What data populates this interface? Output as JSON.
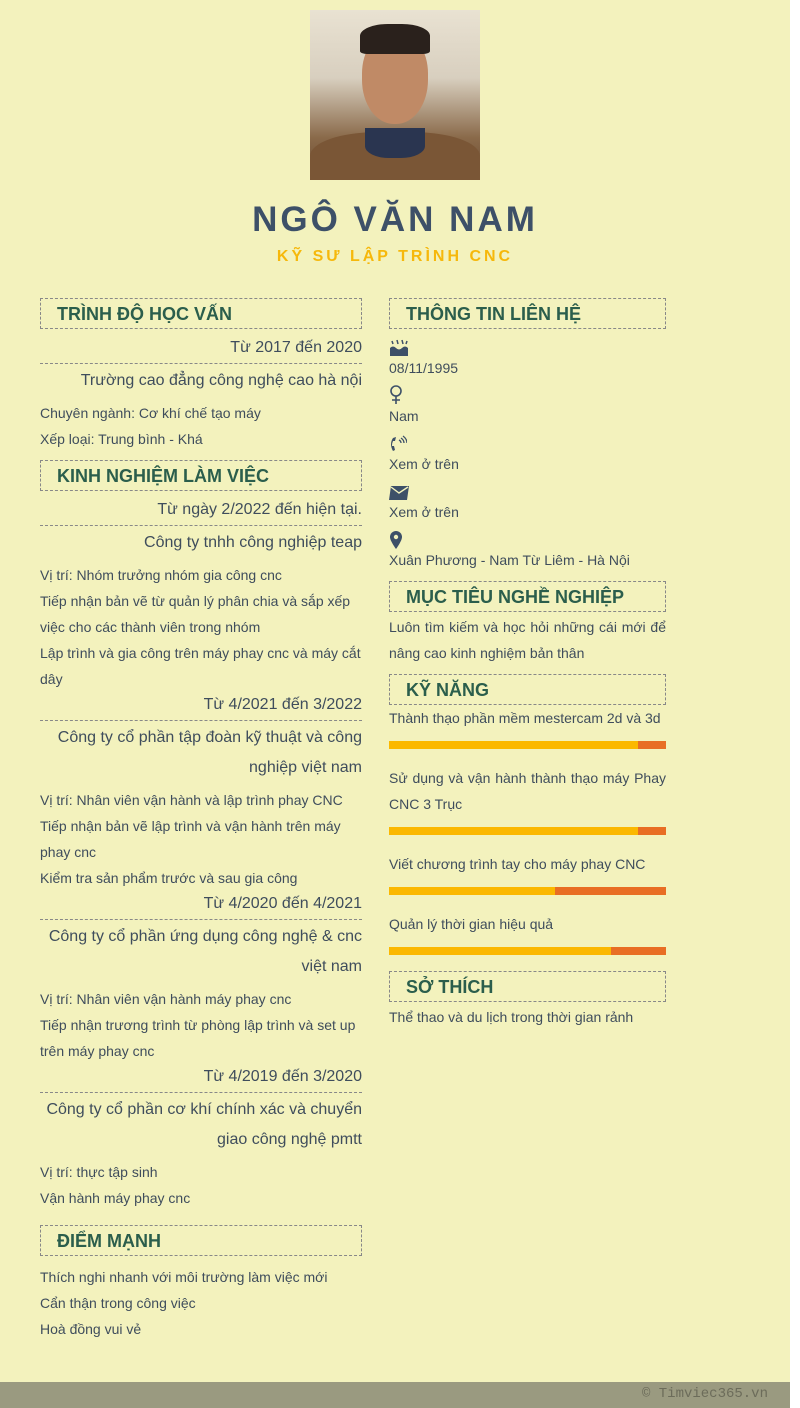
{
  "header": {
    "name": "NGÔ VĂN NAM",
    "title": "KỸ SƯ LẬP TRÌNH CNC"
  },
  "education": {
    "heading": "TRÌNH ĐỘ HỌC VẤN",
    "items": [
      {
        "date": "Từ 2017 đến 2020",
        "org": "Trường cao đẳng công nghệ cao hà nội",
        "lines": [
          "Chuyên ngành: Cơ khí chế tạo máy",
          "Xếp loại: Trung bình - Khá"
        ]
      }
    ]
  },
  "experience": {
    "heading": "KINH NGHIỆM LÀM VIỆC",
    "items": [
      {
        "date": "Từ ngày 2/2022 đến hiện tại.",
        "org": "Công ty tnhh công nghiệp teap",
        "lines": [
          "Vị trí: Nhóm trưởng nhóm gia công cnc",
          "Tiếp nhận bản vẽ từ quản lý phân chia  và sắp xếp việc cho các thành viên trong nhóm",
          "Lập trình và gia công trên máy phay cnc và máy cắt dây"
        ]
      },
      {
        "date": "Từ 4/2021 đến 3/2022",
        "org": "Công ty cổ phần tập đoàn kỹ thuật và công nghiệp việt nam",
        "lines": [
          "Vị trí: Nhân viên vận hành và lập trình phay  CNC",
          "Tiếp nhận bản vẽ lập trình và vận hành trên máy phay cnc",
          "Kiểm tra sản phẩm trước và sau gia công"
        ]
      },
      {
        "date": "Từ 4/2020 đến 4/2021",
        "org": "Công ty cổ phần ứng dụng công nghệ & cnc việt nam",
        "lines": [
          "Vị trí: Nhân viên vận hành máy phay cnc",
          "Tiếp nhận trương trình từ phòng lập trình và set up trên máy phay cnc"
        ]
      },
      {
        "date": "Từ 4/2019 đến 3/2020",
        "org": "Công ty cổ phần cơ khí chính xác và chuyển giao công nghệ pmtt",
        "lines": [
          "Vị trí: thực tập sinh",
          "Vận hành máy phay cnc"
        ]
      }
    ]
  },
  "strengths": {
    "heading": "ĐIỂM MẠNH",
    "lines": [
      "Thích nghi nhanh với môi trường làm việc mới",
      "Cẩn thận trong công việc",
      "Hoà đồng vui vẻ"
    ]
  },
  "contact": {
    "heading": "THÔNG TIN LIÊN HỆ",
    "items": [
      {
        "icon": "birthday-cake-icon",
        "value": "08/11/1995"
      },
      {
        "icon": "gender-icon",
        "value": "Nam"
      },
      {
        "icon": "phone-icon",
        "value": "Xem ở trên"
      },
      {
        "icon": "envelope-icon",
        "value": "Xem ở trên"
      },
      {
        "icon": "map-marker-icon",
        "value": "Xuân Phương - Nam Từ Liêm - Hà Nội"
      }
    ]
  },
  "objective": {
    "heading": "MỤC TIÊU NGHỀ NGHIỆP",
    "text": "Luôn tìm kiếm và học hỏi những cái mới để nâng cao kinh nghiệm bản thân"
  },
  "skills": {
    "heading": "KỸ NĂNG",
    "items": [
      {
        "name": "Thành thạo phần mềm mestercam 2d và 3d",
        "level": 90
      },
      {
        "name": "Sử dụng và vận hành thành thạo máy Phay CNC 3 Trục",
        "level": 90
      },
      {
        "name": "Viết chương trình tay cho máy phay CNC",
        "level": 60
      },
      {
        "name": "Quản lý thời gian hiệu quả",
        "level": 80
      }
    ]
  },
  "hobbies": {
    "heading": "SỞ THÍCH",
    "text": "Thể thao và du lịch trong thời gian rảnh"
  },
  "colors": {
    "heading": "#2b5e4c",
    "name": "#3d5068",
    "title": "#f6b80b",
    "bar_fill": "#fbb800",
    "bar_rest": "#e86e24"
  },
  "footer": {
    "text": "© Timviec365.vn"
  }
}
